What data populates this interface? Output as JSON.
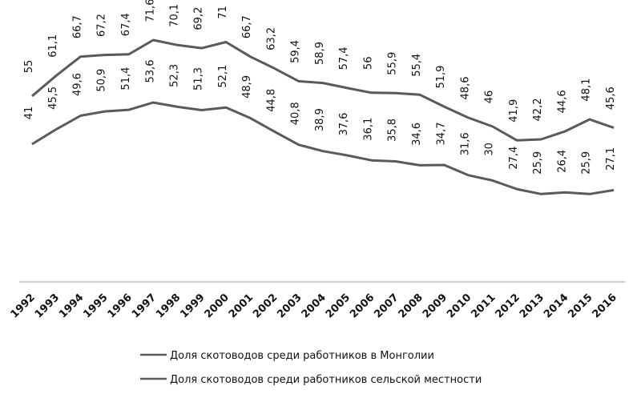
{
  "chart_data": {
    "type": "line",
    "categories": [
      "1992",
      "1993",
      "1994",
      "1995",
      "1996",
      "1997",
      "1998",
      "1999",
      "2000",
      "2001",
      "2002",
      "2003",
      "2004",
      "2005",
      "2006",
      "2007",
      "2008",
      "2009",
      "2010",
      "2011",
      "2012",
      "2013",
      "2014",
      "2015",
      "2016"
    ],
    "series": [
      {
        "name": "Доля скотоводов среди работников сельской местности",
        "values": [
          55,
          61.1,
          66.7,
          67.2,
          67.4,
          71.6,
          70.1,
          69.2,
          71,
          66.7,
          63.2,
          59.4,
          58.9,
          57.4,
          56,
          55.9,
          55.4,
          51.9,
          48.6,
          46,
          41.9,
          42.2,
          44.6,
          48.1,
          45.6
        ],
        "labels": [
          "55",
          "61,1",
          "66,7",
          "67,2",
          "67,4",
          "71,6",
          "70,1",
          "69,2",
          "71",
          "66,7",
          "63,2",
          "59,4",
          "58,9",
          "57,4",
          "56",
          "55,9",
          "55,4",
          "51,9",
          "48,6",
          "46",
          "41,9",
          "42,2",
          "44,6",
          "48,1",
          "45,6"
        ],
        "color": "#5a5a5a"
      },
      {
        "name": "Доля скотоводов среди работников в Монголии",
        "values": [
          41,
          45.5,
          49.6,
          50.9,
          51.4,
          53.6,
          52.3,
          51.3,
          52.1,
          48.9,
          44.8,
          40.8,
          38.9,
          37.6,
          36.1,
          35.8,
          34.6,
          34.7,
          31.6,
          30,
          27.4,
          25.9,
          26.4,
          25.9,
          27.1
        ],
        "labels": [
          "41",
          "45,5",
          "49,6",
          "50,9",
          "51,4",
          "53,6",
          "52,3",
          "51,3",
          "52,1",
          "48,9",
          "44,8",
          "40,8",
          "38,9",
          "37,6",
          "36,1",
          "35,8",
          "34,6",
          "34,7",
          "31,6",
          "30",
          "27,4",
          "25,9",
          "26,4",
          "25,9",
          "27,1"
        ],
        "color": "#5a5a5a"
      }
    ],
    "legend": [
      "Доля скотоводов среди работников в Монголии",
      "Доля скотоводов среди работников сельской местности"
    ],
    "legend_position": "bottom",
    "grid": false,
    "ylim": [
      0,
      75
    ]
  }
}
